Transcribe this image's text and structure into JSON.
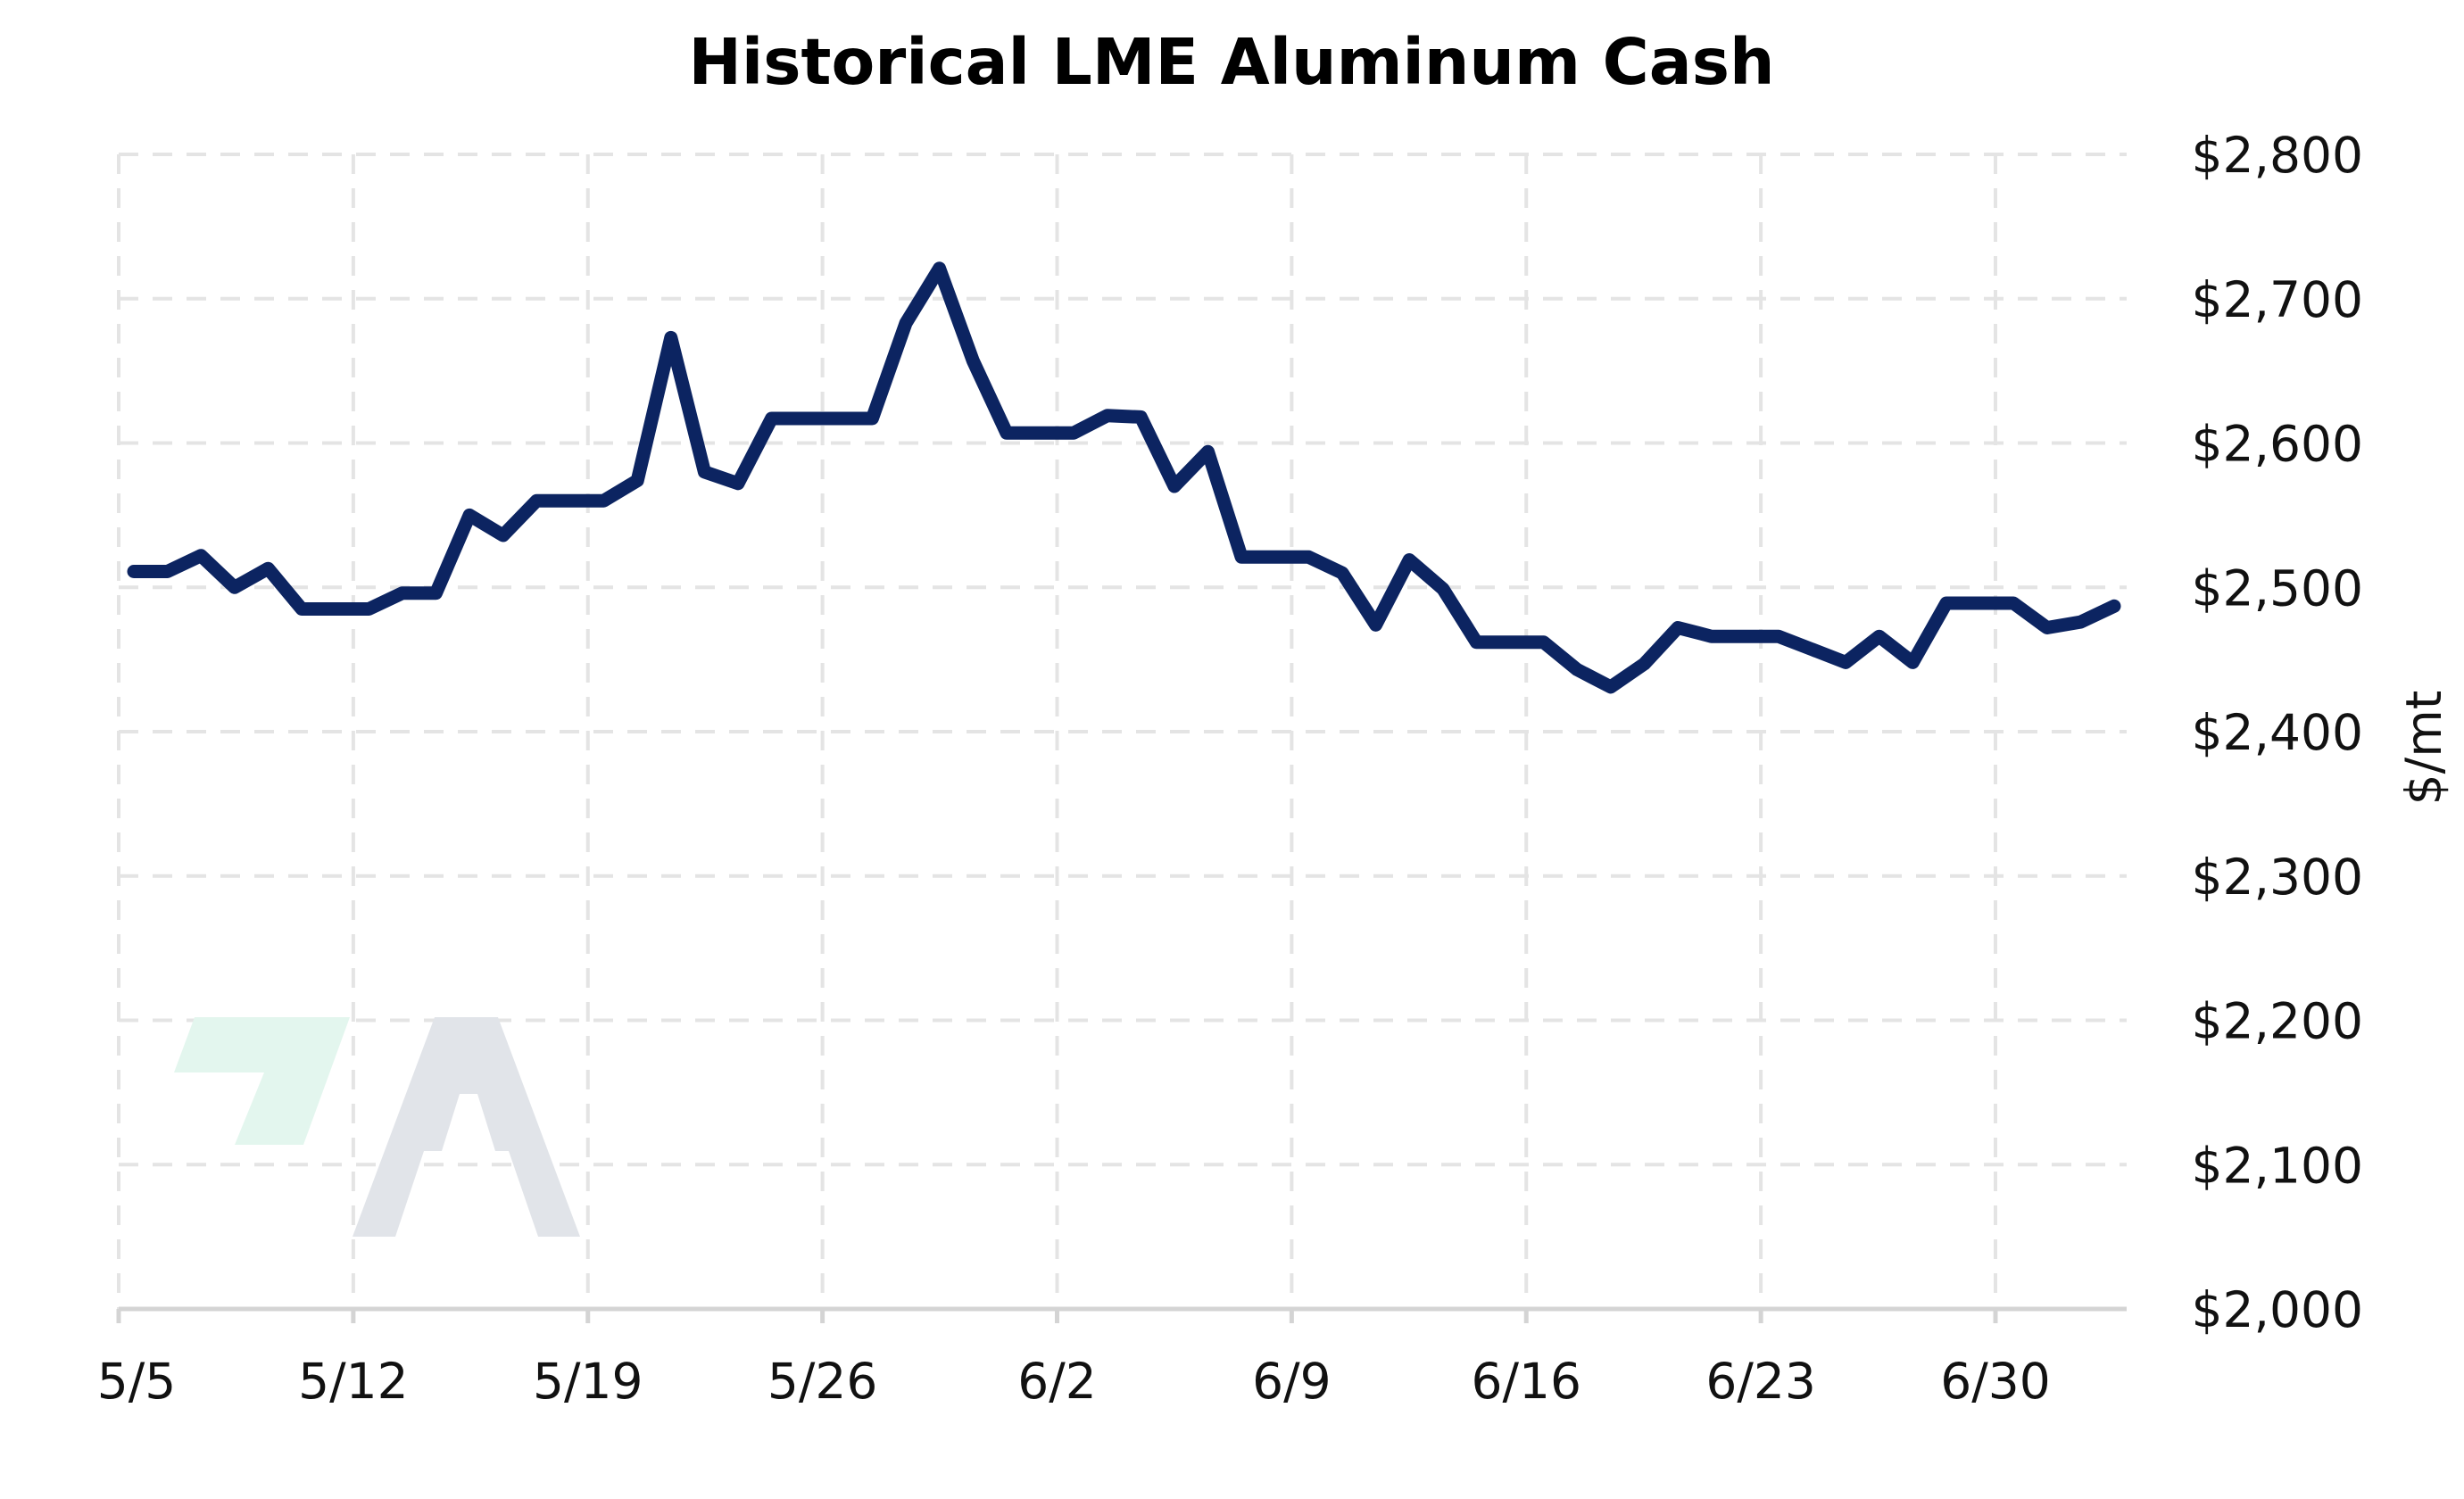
{
  "chart_data": {
    "type": "line",
    "title": "Historical LME Aluminum Cash",
    "xlabel": "",
    "ylabel": "$/mt",
    "x_ticks": [
      "5/5",
      "5/12",
      "5/19",
      "5/26",
      "6/2",
      "6/9",
      "6/16",
      "6/23",
      "6/30"
    ],
    "y_ticks": [
      "$2,000",
      "$2,100",
      "$2,200",
      "$2,300",
      "$2,400",
      "$2,500",
      "$2,600",
      "$2,700",
      "$2,800"
    ],
    "ylim": [
      2000,
      2800
    ],
    "y_axis_side": "right",
    "grid": true,
    "grid_style": "dashed",
    "legend": "none",
    "color": "#0c2461",
    "series": [
      {
        "x": [
          "5/5",
          "5/6",
          "5/7",
          "5/8",
          "5/9",
          "5/10",
          "5/11",
          "5/12",
          "5/13",
          "5/14",
          "5/15",
          "5/16",
          "5/17",
          "5/18",
          "5/19",
          "5/20",
          "5/21",
          "5/22",
          "5/23",
          "5/24",
          "5/25",
          "5/26",
          "5/27",
          "5/28",
          "5/29",
          "5/30",
          "5/31",
          "6/1",
          "6/2",
          "6/3",
          "6/4",
          "6/5",
          "6/6",
          "6/7",
          "6/8",
          "6/9",
          "6/10",
          "6/11",
          "6/12",
          "6/13",
          "6/14",
          "6/15",
          "6/16",
          "6/17",
          "6/18",
          "6/19",
          "6/20",
          "6/21",
          "6/22",
          "6/23",
          "6/24",
          "6/25",
          "6/26",
          "6/27",
          "6/28",
          "6/29",
          "6/30",
          "7/1",
          "7/2",
          "7/3"
        ],
        "values": [
          2511,
          2511,
          2522,
          2500,
          2513,
          2485,
          2485,
          2485,
          2496,
          2496,
          2550,
          2536,
          2560,
          2560,
          2560,
          2574,
          2673,
          2580,
          2572,
          2617,
          2617,
          2617,
          2617,
          2683,
          2721,
          2657,
          2607,
          2607,
          2607,
          2619,
          2618,
          2570,
          2594,
          2521,
          2521,
          2521,
          2510,
          2474,
          2519,
          2499,
          2462,
          2462,
          2462,
          2443,
          2431,
          2447,
          2472,
          2466,
          2466,
          2466,
          2457,
          2448,
          2466,
          2448,
          2489,
          2489,
          2489,
          2472,
          2476,
          2487
        ]
      }
    ]
  }
}
